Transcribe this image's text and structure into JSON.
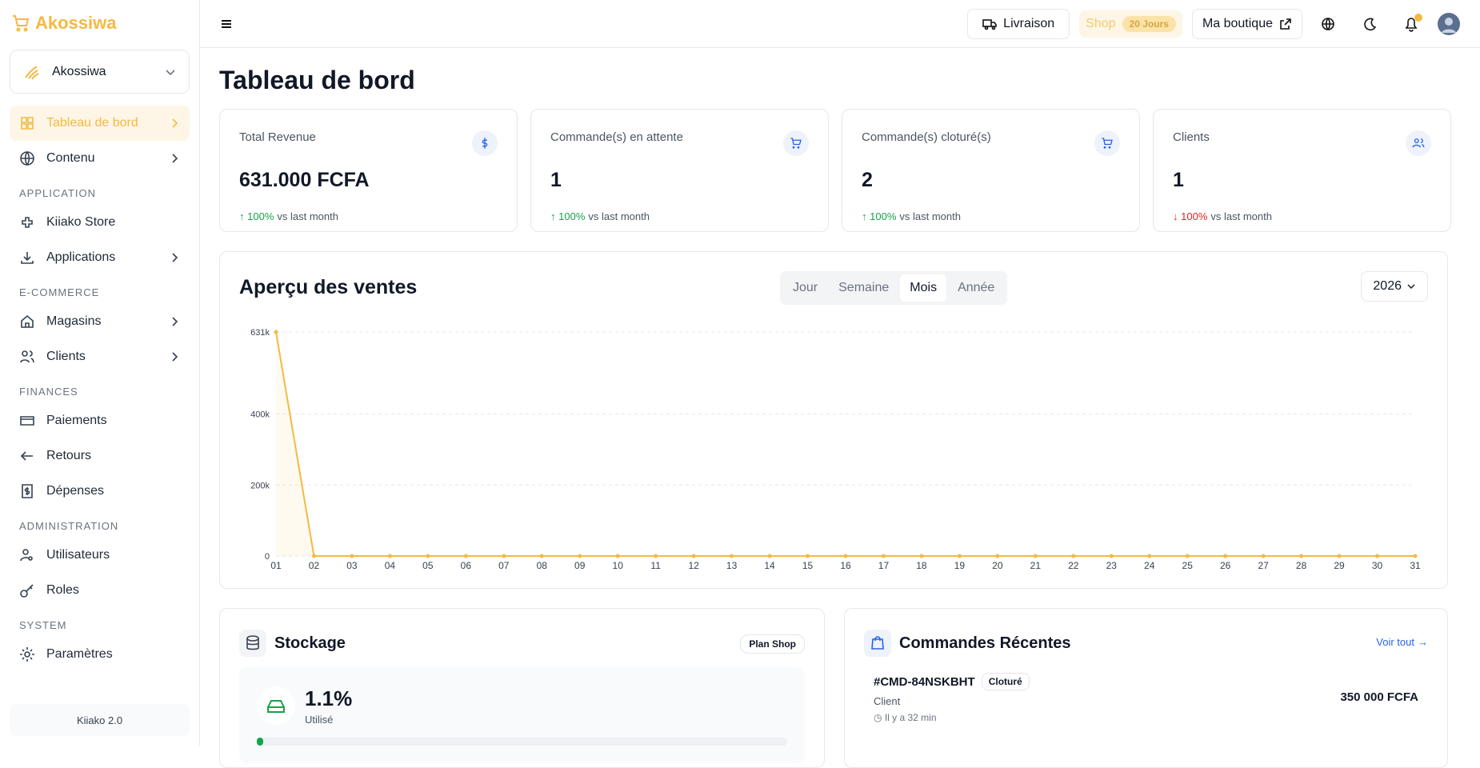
{
  "sidebar": {
    "brand": "Akossiwa",
    "workspace": "Akossiwa",
    "top_nav": [
      {
        "label": "Tableau de bord",
        "active": true,
        "expandable": true
      },
      {
        "label": "Contenu",
        "expandable": true
      }
    ],
    "sections": [
      {
        "heading": "APPLICATION",
        "items": [
          {
            "label": "Kiiako Store",
            "expandable": false
          },
          {
            "label": "Applications",
            "expandable": true
          }
        ]
      },
      {
        "heading": "E-COMMERCE",
        "items": [
          {
            "label": "Magasins",
            "expandable": true
          },
          {
            "label": "Clients",
            "expandable": true
          }
        ]
      },
      {
        "heading": "FINANCES",
        "items": [
          {
            "label": "Paiements",
            "expandable": false
          },
          {
            "label": "Retours",
            "expandable": false
          },
          {
            "label": "Dépenses",
            "expandable": false
          }
        ]
      },
      {
        "heading": "ADMINISTRATION",
        "items": [
          {
            "label": "Utilisateurs",
            "expandable": false
          },
          {
            "label": "Roles",
            "expandable": false
          }
        ]
      },
      {
        "heading": "SYSTEM",
        "items": [
          {
            "label": "Paramètres",
            "expandable": false
          }
        ]
      }
    ],
    "version": "Kiiako 2.0"
  },
  "topbar": {
    "delivery": "Livraison",
    "plan": "Shop",
    "trial": "20 Jours",
    "shop_link": "Ma boutique"
  },
  "page_title": "Tableau de bord",
  "stats": [
    {
      "label": "Total Revenue",
      "value": "631.000 FCFA",
      "change": "100%",
      "change_text": "vs last month",
      "trend": "up"
    },
    {
      "label": "Commande(s) en attente",
      "value": "1",
      "change": "100%",
      "change_text": "vs last month",
      "trend": "up"
    },
    {
      "label": "Commande(s) cloturé(s)",
      "value": "2",
      "change": "100%",
      "change_text": "vs last month",
      "trend": "up"
    },
    {
      "label": "Clients",
      "value": "1",
      "change": "100%",
      "change_text": "vs last month",
      "trend": "down"
    }
  ],
  "chart_data": {
    "type": "line",
    "title": "Aperçu des ventes",
    "periods": [
      "Jour",
      "Semaine",
      "Mois",
      "Année"
    ],
    "active_period": 2,
    "year": "2026",
    "categories": [
      "01",
      "02",
      "03",
      "04",
      "05",
      "06",
      "07",
      "08",
      "09",
      "10",
      "11",
      "12",
      "13",
      "14",
      "15",
      "16",
      "17",
      "18",
      "19",
      "20",
      "21",
      "22",
      "23",
      "24",
      "25",
      "26",
      "27",
      "28",
      "29",
      "30",
      "31"
    ],
    "values": [
      631000,
      0,
      0,
      0,
      0,
      0,
      0,
      0,
      0,
      0,
      0,
      0,
      0,
      0,
      0,
      0,
      0,
      0,
      0,
      0,
      0,
      0,
      0,
      0,
      0,
      0,
      0,
      0,
      0,
      0,
      0
    ],
    "color": "#f5b942",
    "ylim": [
      0,
      631000
    ],
    "yticks": [
      0,
      {
        "value": 200000,
        "label": "200k"
      },
      {
        "value": 400000,
        "label": "400k"
      },
      {
        "value": 631000,
        "label": "631k"
      }
    ],
    "grid": true
  },
  "storage": {
    "title": "Stockage",
    "plan": "Plan Shop",
    "percent": "1.1%",
    "caption": "Utilisé"
  },
  "recent_orders": {
    "title": "Commandes Récentes",
    "link": "Voir tout",
    "orders": [
      {
        "id": "#CMD-84NSKBHT",
        "status": "Cloturé",
        "customer": "Client",
        "time": "Il y a 32 min",
        "amount": "350 000 FCFA"
      }
    ]
  }
}
